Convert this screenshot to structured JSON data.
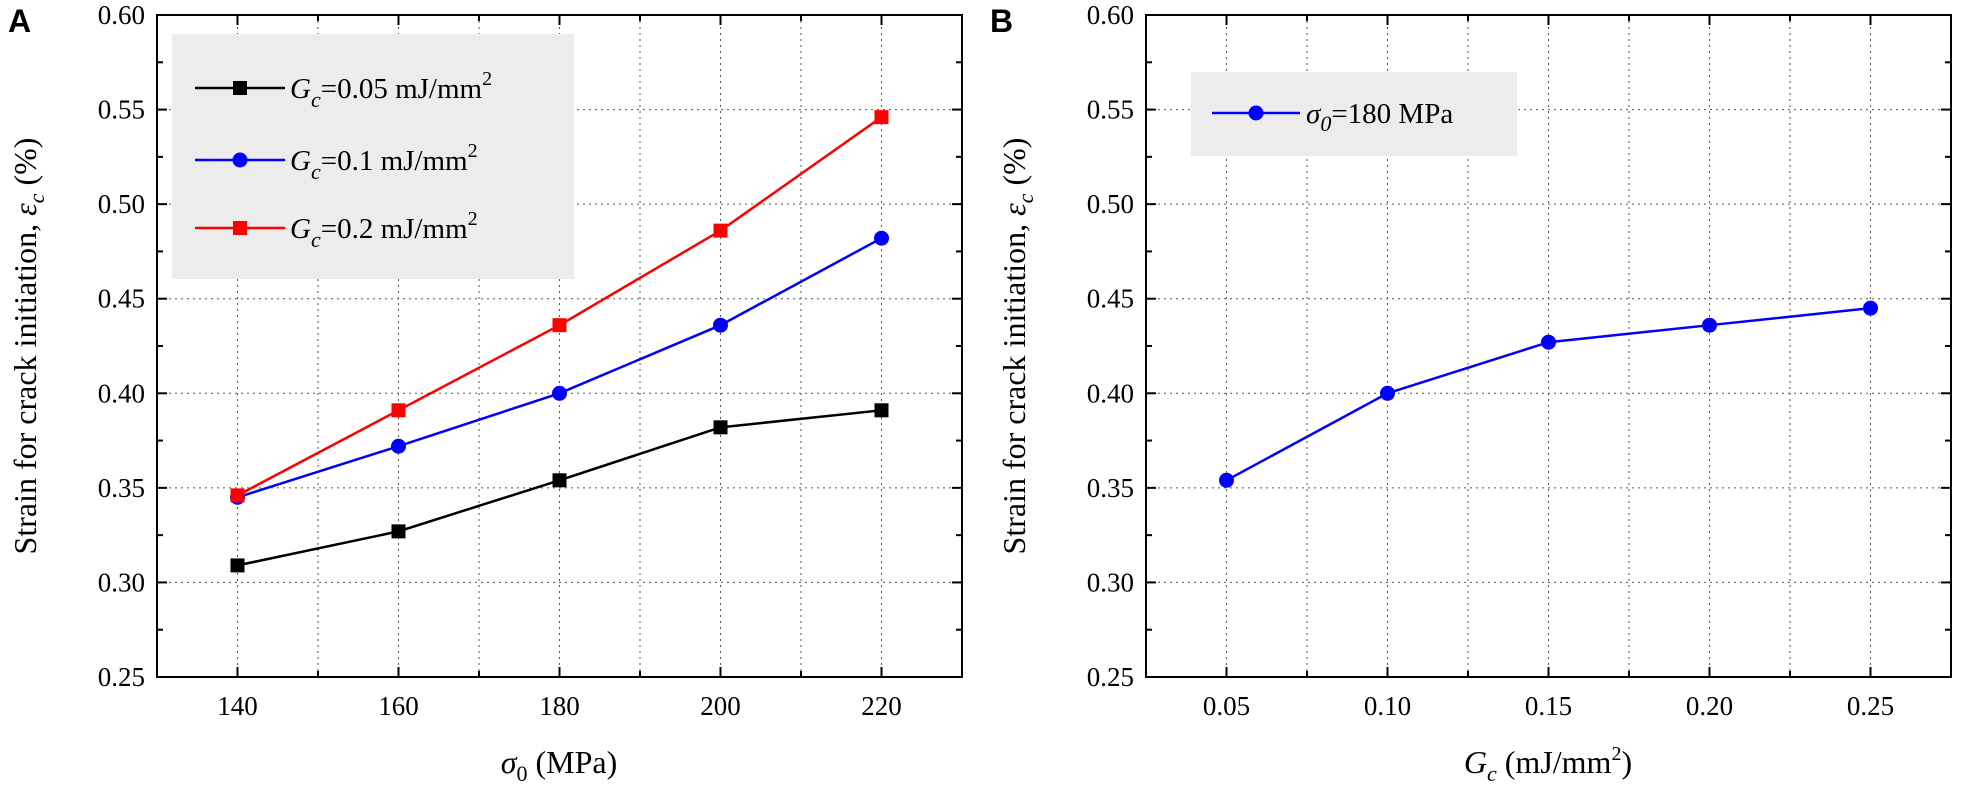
{
  "chart_data": [
    {
      "panel": "A",
      "type": "line",
      "xlabel": "σ0 (MPa)",
      "ylabel": "Strain for crack initiation, εc (%)",
      "x": [
        140,
        160,
        180,
        200,
        220
      ],
      "x_ticks": [
        "140",
        "160",
        "180",
        "200",
        "220"
      ],
      "xlim": [
        130,
        230
      ],
      "ylim": [
        0.25,
        0.6
      ],
      "y_ticks": [
        "0.25",
        "0.30",
        "0.35",
        "0.40",
        "0.45",
        "0.50",
        "0.55",
        "0.60"
      ],
      "grid": true,
      "legend_position": "top-left",
      "series": [
        {
          "name": "Gc=0.05 mJ/mm2",
          "legend_value": "=0.05 mJ/mm",
          "legend_sup": "2",
          "color": "#000000",
          "marker": "square",
          "values": [
            0.309,
            0.327,
            0.354,
            0.382,
            0.391
          ]
        },
        {
          "name": "Gc=0.1 mJ/mm2",
          "legend_value": "=0.1 mJ/mm",
          "legend_sup": "2",
          "color": "#0000ff",
          "marker": "circle",
          "values": [
            0.345,
            0.372,
            0.4,
            0.436,
            0.482
          ]
        },
        {
          "name": "Gc=0.2 mJ/mm2",
          "legend_value": "=0.2 mJ/mm",
          "legend_sup": "2",
          "color": "#ff0000",
          "marker": "square",
          "values": [
            0.346,
            0.391,
            0.436,
            0.486,
            0.546
          ]
        }
      ]
    },
    {
      "panel": "B",
      "type": "line",
      "xlabel": "Gc (mJ/mm2)",
      "ylabel": "Strain for crack initiation, εc (%)",
      "x": [
        0.05,
        0.1,
        0.15,
        0.2,
        0.25
      ],
      "x_ticks": [
        "0.05",
        "0.10",
        "0.15",
        "0.20",
        "0.25"
      ],
      "xlim": [
        0.025,
        0.275
      ],
      "ylim": [
        0.25,
        0.6
      ],
      "y_ticks": [
        "0.25",
        "0.30",
        "0.35",
        "0.40",
        "0.45",
        "0.50",
        "0.55",
        "0.60"
      ],
      "grid": true,
      "legend_position": "top-left",
      "series": [
        {
          "name": "σ0=180 MPa",
          "legend_value": "=180 MPa",
          "color": "#0000ff",
          "marker": "circle",
          "values": [
            0.354,
            0.4,
            0.427,
            0.436,
            0.445
          ]
        }
      ]
    }
  ],
  "labels": {
    "panel_a": "A",
    "panel_b": "B",
    "ylabel_main": "Strain for crack initiation, ",
    "ylabel_sym": "ε",
    "ylabel_sub": "c",
    "ylabel_unit": " (%)",
    "a_xlabel_sym": "σ",
    "a_xlabel_sub": "0",
    "a_xlabel_unit": " (MPa)",
    "b_xlabel_sym": "G",
    "b_xlabel_sub": "c",
    "b_xlabel_unit": " (mJ/mm",
    "b_xlabel_sup": "2",
    "b_xlabel_close": ")",
    "legend_g": "G",
    "legend_c": "c",
    "legend_sigma": "σ",
    "legend_zero": "0"
  }
}
